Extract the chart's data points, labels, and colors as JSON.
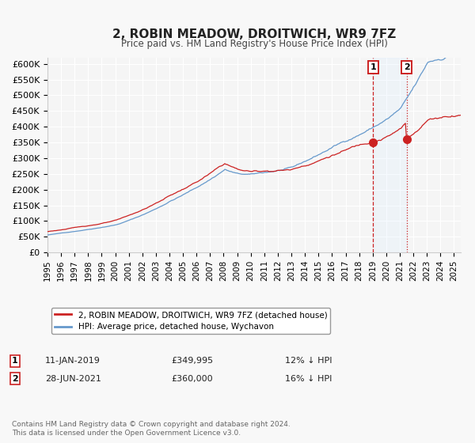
{
  "title": "2, ROBIN MEADOW, DROITWICH, WR9 7FZ",
  "subtitle": "Price paid vs. HM Land Registry's House Price Index (HPI)",
  "ylim": [
    0,
    620000
  ],
  "xlim_start": 1995.0,
  "xlim_end": 2025.5,
  "yticks": [
    0,
    50000,
    100000,
    150000,
    200000,
    250000,
    300000,
    350000,
    400000,
    450000,
    500000,
    550000,
    600000
  ],
  "ytick_labels": [
    "£0",
    "£50K",
    "£100K",
    "£150K",
    "£200K",
    "£250K",
    "£300K",
    "£350K",
    "£400K",
    "£450K",
    "£500K",
    "£550K",
    "£600K"
  ],
  "xticks": [
    1995,
    1996,
    1997,
    1998,
    1999,
    2000,
    2001,
    2002,
    2003,
    2004,
    2005,
    2006,
    2007,
    2008,
    2009,
    2010,
    2011,
    2012,
    2013,
    2014,
    2015,
    2016,
    2017,
    2018,
    2019,
    2020,
    2021,
    2022,
    2023,
    2024,
    2025
  ],
  "background_color": "#f5f5f5",
  "grid_color": "#ffffff",
  "hpi_color": "#6699cc",
  "price_color": "#cc2222",
  "sale1_date": 2019.04,
  "sale1_price": 349995,
  "sale1_date_str": "11-JAN-2019",
  "sale1_price_str": "£349,995",
  "sale1_pct": "12% ↓ HPI",
  "sale2_date": 2021.5,
  "sale2_price": 360000,
  "sale2_date_str": "28-JUN-2021",
  "sale2_price_str": "£360,000",
  "sale2_pct": "16% ↓ HPI",
  "legend_label_price": "2, ROBIN MEADOW, DROITWICH, WR9 7FZ (detached house)",
  "legend_label_hpi": "HPI: Average price, detached house, Wychavon",
  "footer": "Contains HM Land Registry data © Crown copyright and database right 2024.\nThis data is licensed under the Open Government Licence v3.0.",
  "shading_color": "#ddeeff",
  "fig_facecolor": "#f8f8f8"
}
